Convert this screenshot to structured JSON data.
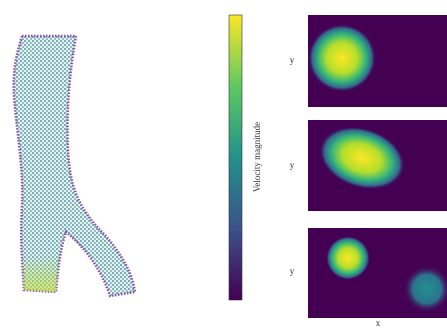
{
  "colorbar": {
    "label": "Velocity magnitude"
  },
  "panels": [
    {
      "ylabel": "y"
    },
    {
      "ylabel": "y"
    },
    {
      "ylabel": "y",
      "xlabel": "x"
    }
  ]
}
